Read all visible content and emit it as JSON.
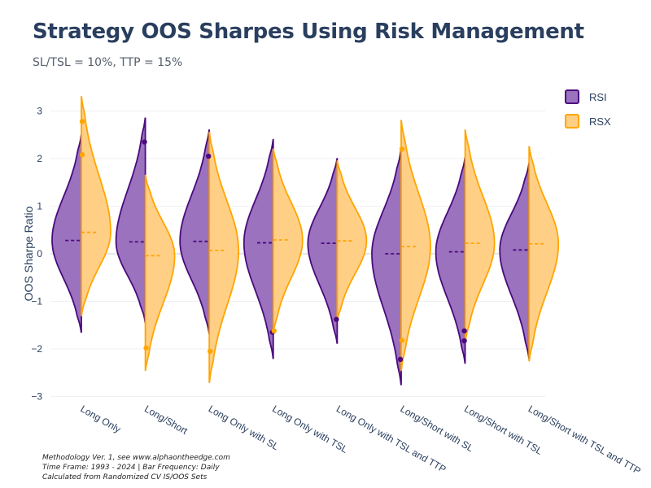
{
  "header": {
    "title": "Strategy OOS Sharpes Using Risk Management",
    "subtitle": "SL/TSL = 10%, TTP = 15%"
  },
  "footer": {
    "line1": "Methodology Ver. 1, see www.alphaontheedge.com",
    "line2": "Time Frame: 1993 - 2024 | Bar Frequency: Daily",
    "line3": "Calculated from Randomized CV IS/OOS Sets"
  },
  "colors": {
    "rsi_fill": "#9b72be",
    "rsi_line": "#4b0a7d",
    "rsx_fill": "#ffcf85",
    "rsx_line": "#ffa500"
  },
  "chart_data": {
    "type": "violin",
    "title": "Strategy OOS Sharpes Using Risk Management",
    "subtitle": "SL/TSL = 10%, TTP = 15%",
    "ylabel": "OOS Sharpe Ratio",
    "xlabel": "",
    "ylim": [
      -3,
      3.3
    ],
    "yticks": [
      -3,
      -2,
      -1,
      0,
      1,
      2,
      3
    ],
    "grid": true,
    "legend_position": "top-right",
    "categories": [
      "Long Only",
      "Long/Short",
      "Long Only with SL",
      "Long Only with TSL",
      "Long Only with TSL and TTP",
      "Long/Short with SL",
      "Long/Short with TSL",
      "Long/Short with TSL and TTP"
    ],
    "series": [
      {
        "name": "RSI",
        "side": "negative",
        "means": [
          0.28,
          0.25,
          0.26,
          0.23,
          0.22,
          0.0,
          0.04,
          0.08
        ],
        "min": [
          -1.65,
          -1.45,
          -1.68,
          -2.2,
          -1.88,
          -2.75,
          -2.3,
          -2.2
        ],
        "max": [
          2.5,
          2.85,
          2.6,
          2.4,
          2.0,
          2.2,
          2.02,
          1.9
        ],
        "outliers": [
          [],
          [
            2.35
          ],
          [
            2.05
          ],
          [
            -1.65
          ],
          [
            -1.38
          ],
          [
            -2.22
          ],
          [
            -1.62,
            -1.83
          ],
          []
        ]
      },
      {
        "name": "RSX",
        "side": "positive",
        "means": [
          0.45,
          -0.04,
          0.07,
          0.29,
          0.27,
          0.15,
          0.22,
          0.21
        ],
        "min": [
          -1.3,
          -2.45,
          -2.7,
          -1.65,
          -1.4,
          -2.45,
          -1.85,
          -2.25
        ],
        "max": [
          3.3,
          1.65,
          2.55,
          2.2,
          1.95,
          2.8,
          2.6,
          2.25
        ],
        "outliers": [
          [
            2.78,
            2.08
          ],
          [
            -1.98
          ],
          [
            -2.05
          ],
          [
            -1.62
          ],
          [],
          [
            2.2,
            -1.82
          ],
          [],
          []
        ]
      }
    ]
  }
}
